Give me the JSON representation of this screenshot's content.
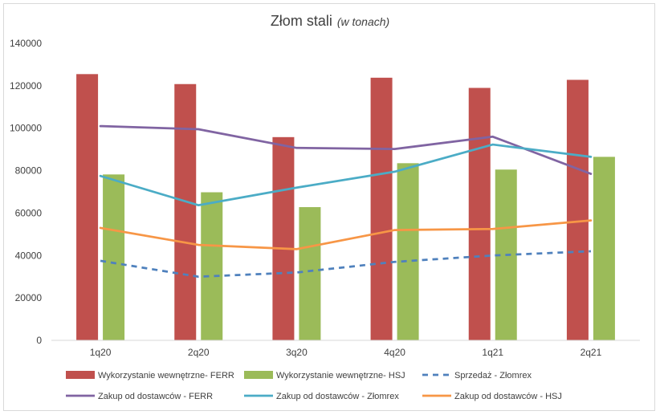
{
  "chart_data": {
    "type": "bar",
    "title": "Złom stali",
    "subtitle": "(w tonach)",
    "categories": [
      "1q20",
      "2q20",
      "3q20",
      "4q20",
      "1q21",
      "2q21"
    ],
    "ylim": [
      0,
      140000
    ],
    "yticks": [
      0,
      20000,
      40000,
      60000,
      80000,
      100000,
      120000,
      140000
    ],
    "grid": false,
    "legend_position": "bottom",
    "bar_series": [
      {
        "name": "Wykorzystanie wewnętrzne- FERR",
        "color": "#c0504d",
        "values": [
          125500,
          120800,
          95800,
          123800,
          119000,
          122800
        ]
      },
      {
        "name": "Wykorzystanie wewnętrzne- HSJ",
        "color": "#9bbb59",
        "values": [
          78200,
          69800,
          62800,
          83500,
          80500,
          86500
        ]
      }
    ],
    "line_series": [
      {
        "name": "Sprzedaż - Złomrex",
        "color": "#4f81bd",
        "dashed": true,
        "values": [
          37500,
          30000,
          32000,
          37000,
          40000,
          42000
        ]
      },
      {
        "name": "Zakup od dostawców - FERR",
        "color": "#8064a2",
        "dashed": false,
        "values": [
          101000,
          99500,
          90700,
          90200,
          96000,
          78500
        ]
      },
      {
        "name": "Zakup od dostawców - Złomrex",
        "color": "#4bacc6",
        "dashed": false,
        "values": [
          77500,
          63700,
          72000,
          79500,
          92300,
          86500
        ]
      },
      {
        "name": "Zakup od dostawców - HSJ",
        "color": "#f79646",
        "dashed": false,
        "values": [
          53000,
          45000,
          43000,
          52000,
          52500,
          56500
        ]
      }
    ]
  }
}
